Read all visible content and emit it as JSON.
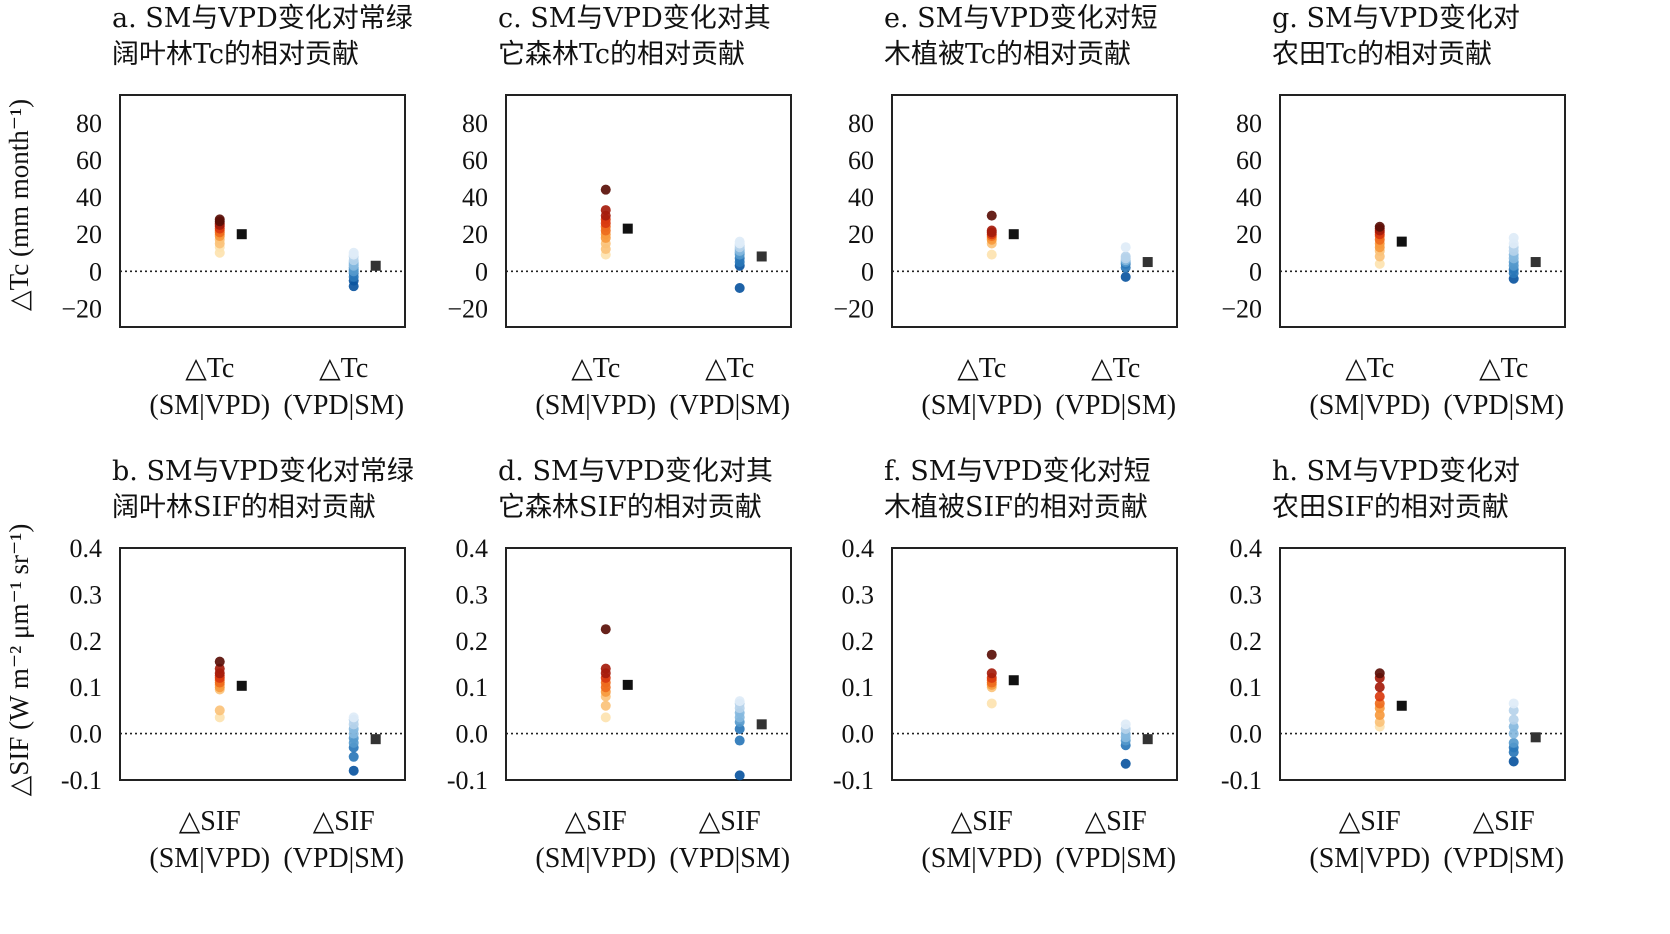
{
  "figure": {
    "ylabel_top": "△Tc (mm month⁻¹)",
    "ylabel_bottom": "△SIF (W m⁻² μm⁻¹ sr⁻¹)"
  },
  "colors": {
    "sm_series": [
      "#fde3b0",
      "#fbc27a",
      "#f79a3e",
      "#ee6b1d",
      "#d93a0f",
      "#a51c0c",
      "#5a0f08"
    ],
    "vpd_series": [
      "#deebf7",
      "#b6d3ea",
      "#86b8de",
      "#5599cc",
      "#2a77b8",
      "#0b559f"
    ],
    "mean_marker": "#111111"
  },
  "chart_data": [
    {
      "id": "a",
      "type": "scatter",
      "title_lines": [
        "a. SM与VPD变化对常绿",
        "阔叶林Tc的相对贡献"
      ],
      "categories": [
        [
          "△Tc",
          "(SM|VPD)"
        ],
        [
          "△Tc",
          "(VPD|SM)"
        ]
      ],
      "yticks": [
        "80",
        "60",
        "40",
        "20",
        "0",
        "−20"
      ],
      "ylim": [
        -30,
        95
      ],
      "series": [
        {
          "values": [
            10,
            13,
            15,
            17,
            19,
            20,
            21,
            22,
            23,
            24,
            25,
            26,
            27,
            28
          ],
          "mean": 20
        },
        {
          "values": [
            -8,
            -5,
            -3,
            -1,
            0,
            1,
            2,
            3,
            4,
            5,
            6,
            8,
            9,
            10
          ],
          "mean": 3
        }
      ]
    },
    {
      "id": "c",
      "type": "scatter",
      "title_lines": [
        "c. SM与VPD变化对其",
        "它森林Tc的相对贡献"
      ],
      "categories": [
        [
          "△Tc",
          "(SM|VPD)"
        ],
        [
          "△Tc",
          "(VPD|SM)"
        ]
      ],
      "yticks": [
        "80",
        "60",
        "40",
        "20",
        "0",
        "−20"
      ],
      "ylim": [
        -30,
        95
      ],
      "series": [
        {
          "values": [
            9,
            12,
            15,
            18,
            20,
            22,
            24,
            26,
            28,
            30,
            33,
            44
          ],
          "mean": 23
        },
        {
          "values": [
            -9,
            3,
            5,
            7,
            9,
            10,
            11,
            12,
            13,
            14,
            15,
            16
          ],
          "mean": 8
        }
      ]
    },
    {
      "id": "e",
      "type": "scatter",
      "title_lines": [
        "e. SM与VPD变化对短",
        "木植被Tc的相对贡献"
      ],
      "categories": [
        [
          "△Tc",
          "(SM|VPD)"
        ],
        [
          "△Tc",
          "(VPD|SM)"
        ]
      ],
      "yticks": [
        "80",
        "60",
        "40",
        "20",
        "0",
        "−20"
      ],
      "ylim": [
        -30,
        95
      ],
      "series": [
        {
          "values": [
            9,
            15,
            17,
            18,
            19,
            20,
            21,
            22,
            30
          ],
          "mean": 20
        },
        {
          "values": [
            -3,
            2,
            4,
            5,
            6,
            7,
            8,
            13
          ],
          "mean": 5
        }
      ]
    },
    {
      "id": "g",
      "type": "scatter",
      "title_lines": [
        "g. SM与VPD变化对",
        "农田Tc的相对贡献"
      ],
      "categories": [
        [
          "△Tc",
          "(SM|VPD)"
        ],
        [
          "△Tc",
          "(VPD|SM)"
        ]
      ],
      "yticks": [
        "80",
        "60",
        "40",
        "20",
        "0",
        "−20"
      ],
      "ylim": [
        -30,
        95
      ],
      "series": [
        {
          "values": [
            4,
            8,
            11,
            13,
            15,
            17,
            19,
            20,
            21,
            22,
            23,
            24
          ],
          "mean": 16
        },
        {
          "values": [
            -4,
            -1,
            1,
            3,
            5,
            7,
            9,
            11,
            13,
            15,
            18
          ],
          "mean": 5
        }
      ]
    },
    {
      "id": "b",
      "type": "scatter",
      "title_lines": [
        "b. SM与VPD变化对常绿",
        "阔叶林SIF的相对贡献"
      ],
      "categories": [
        [
          "△SIF",
          "(SM|VPD)"
        ],
        [
          "△SIF",
          "(VPD|SM)"
        ]
      ],
      "yticks": [
        "0.4",
        "0.3",
        "0.2",
        "0.1",
        "0.0",
        "-0.1"
      ],
      "ylim": [
        -0.1,
        0.4
      ],
      "series": [
        {
          "values": [
            0.035,
            0.05,
            0.095,
            0.1,
            0.105,
            0.11,
            0.115,
            0.12,
            0.125,
            0.13,
            0.14,
            0.155
          ],
          "mean": 0.103
        },
        {
          "values": [
            -0.08,
            -0.05,
            -0.03,
            -0.02,
            -0.01,
            0.0,
            0.01,
            0.02,
            0.03,
            0.035
          ],
          "mean": -0.012
        }
      ]
    },
    {
      "id": "d",
      "type": "scatter",
      "title_lines": [
        "d. SM与VPD变化对其",
        "它森林SIF的相对贡献"
      ],
      "categories": [
        [
          "△SIF",
          "(SM|VPD)"
        ],
        [
          "△SIF",
          "(VPD|SM)"
        ]
      ],
      "yticks": [
        "0.4",
        "0.3",
        "0.2",
        "0.1",
        "0.0",
        "-0.1"
      ],
      "ylim": [
        -0.1,
        0.4
      ],
      "series": [
        {
          "values": [
            0.035,
            0.06,
            0.08,
            0.09,
            0.1,
            0.11,
            0.12,
            0.13,
            0.14,
            0.225
          ],
          "mean": 0.105
        },
        {
          "values": [
            -0.09,
            -0.015,
            0.01,
            0.025,
            0.035,
            0.045,
            0.055,
            0.065,
            0.07
          ],
          "mean": 0.02
        }
      ]
    },
    {
      "id": "f",
      "type": "scatter",
      "title_lines": [
        "f. SM与VPD变化对短",
        "木植被SIF的相对贡献"
      ],
      "categories": [
        [
          "△SIF",
          "(SM|VPD)"
        ],
        [
          "△SIF",
          "(VPD|SM)"
        ]
      ],
      "yticks": [
        "0.4",
        "0.3",
        "0.2",
        "0.1",
        "0.0",
        "-0.1"
      ],
      "ylim": [
        -0.1,
        0.4
      ],
      "series": [
        {
          "values": [
            0.065,
            0.1,
            0.105,
            0.11,
            0.115,
            0.12,
            0.13,
            0.17
          ],
          "mean": 0.115
        },
        {
          "values": [
            -0.065,
            -0.025,
            -0.015,
            -0.008,
            0.0,
            0.01,
            0.02
          ],
          "mean": -0.012
        }
      ]
    },
    {
      "id": "h",
      "type": "scatter",
      "title_lines": [
        "h. SM与VPD变化对",
        "农田SIF的相对贡献"
      ],
      "categories": [
        [
          "△SIF",
          "(SM|VPD)"
        ],
        [
          "△SIF",
          "(VPD|SM)"
        ]
      ],
      "yticks": [
        "0.4",
        "0.3",
        "0.2",
        "0.1",
        "0.0",
        "-0.1"
      ],
      "ylim": [
        -0.1,
        0.4
      ],
      "series": [
        {
          "values": [
            0.015,
            0.025,
            0.04,
            0.055,
            0.065,
            0.08,
            0.1,
            0.12,
            0.13
          ],
          "mean": 0.06
        },
        {
          "values": [
            -0.06,
            -0.04,
            -0.03,
            -0.02,
            0.0,
            0.015,
            0.03,
            0.05,
            0.065
          ],
          "mean": -0.008
        }
      ]
    }
  ]
}
